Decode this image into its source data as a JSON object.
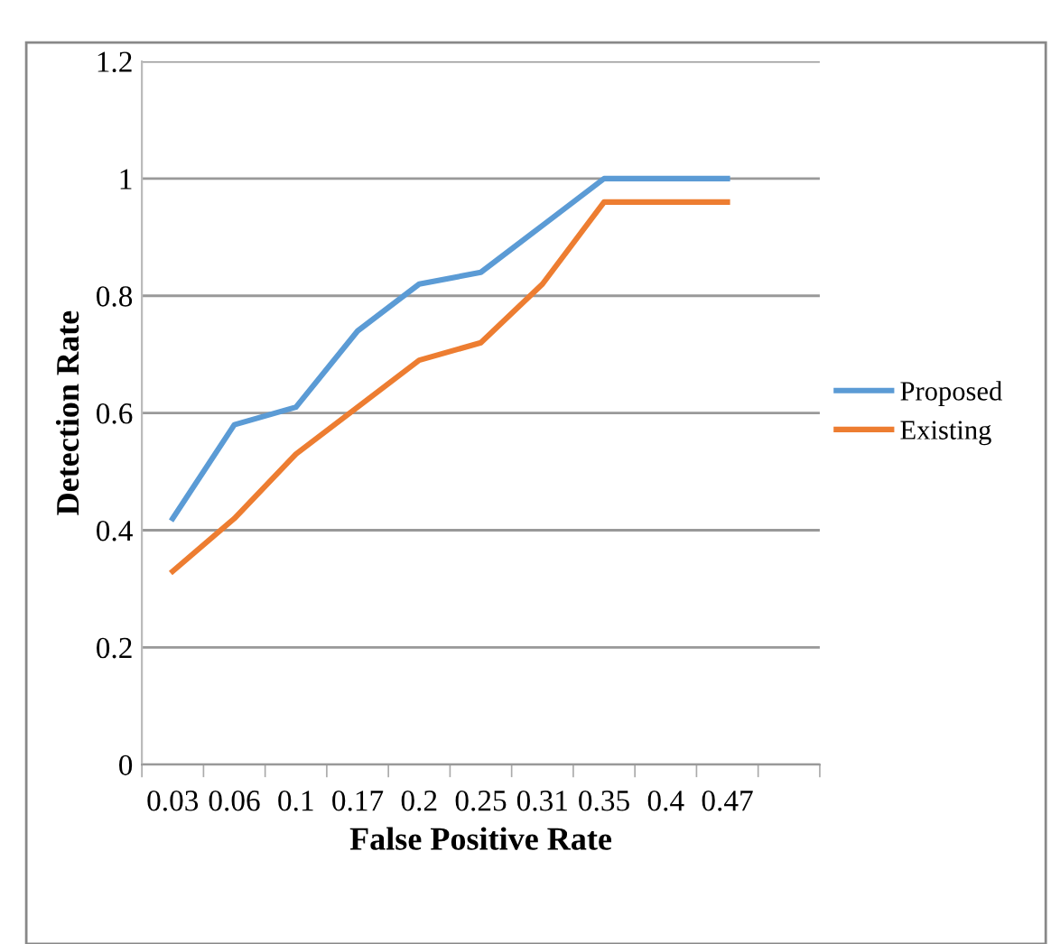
{
  "chart_data": {
    "type": "line",
    "xlabel": "False Positive Rate",
    "ylabel": "Detection Rate",
    "categories": [
      "0.03",
      "0.06",
      "0.1",
      "0.17",
      "0.2",
      "0.25",
      "0.31",
      "0.35",
      "0.4",
      "0.47",
      null
    ],
    "series": [
      {
        "name": "Proposed",
        "color": "#5b9bd5",
        "values": [
          0.42,
          0.58,
          0.61,
          0.74,
          0.82,
          0.84,
          0.92,
          1.0,
          1.0,
          1.0,
          null
        ]
      },
      {
        "name": "Existing",
        "color": "#ed7d31",
        "values": [
          0.33,
          0.42,
          0.53,
          0.61,
          0.69,
          0.72,
          0.82,
          0.96,
          0.96,
          0.96,
          null
        ]
      }
    ],
    "ylim": [
      0,
      1.2
    ],
    "yticks": [
      0,
      0.2,
      0.4,
      0.6,
      0.8,
      1,
      1.2
    ],
    "grid": "y",
    "legend": "right",
    "marker": "none",
    "line_style": "solid"
  }
}
